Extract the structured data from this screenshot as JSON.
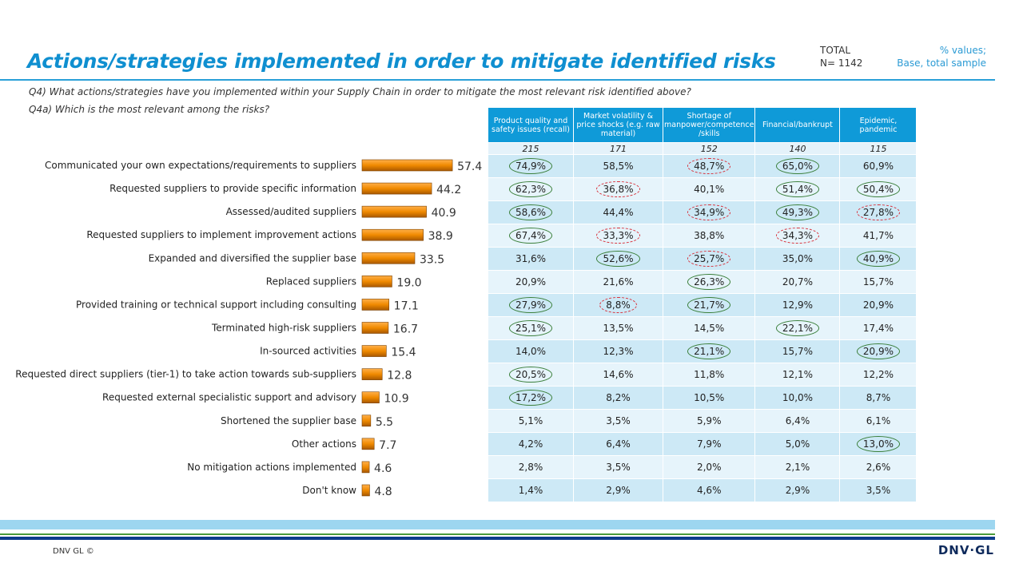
{
  "title": "Actions/strategies implemented in order to mitigate identified risks",
  "total_label": "TOTAL",
  "total_n": "N= 1142",
  "base_line1": "% values;",
  "base_line2": "Base,  total sample",
  "q4": "Q4) What actions/strategies have you implemented within your Supply Chain in order to mitigate the most relevant risk identified above?",
  "q4a": "Q4a) Which is the most relevant among the risks?",
  "chart_data": {
    "type": "bar",
    "orientation": "horizontal",
    "categories": [
      "Communicated your own expectations/requirements to suppliers",
      "Requested suppliers to provide specific information",
      "Assessed/audited suppliers",
      "Requested suppliers to implement improvement actions",
      "Expanded and diversified the supplier base",
      "Replaced suppliers",
      "Provided training or technical support including consulting",
      "Terminated high-risk suppliers",
      "In-sourced activities",
      "Requested direct suppliers (tier-1) to take action towards sub-suppliers",
      "Requested external specialistic support and advisory",
      "Shortened the supplier base",
      "Other actions",
      "No mitigation actions implemented",
      "Don't know"
    ],
    "values": [
      57.4,
      44.2,
      40.9,
      38.9,
      33.5,
      19.0,
      17.1,
      16.7,
      15.4,
      12.8,
      10.9,
      5.5,
      7.7,
      4.6,
      4.8
    ],
    "value_labels": [
      "57.4",
      "44.2",
      "40.9",
      "38.9",
      "33.5",
      "19.0",
      "17.1",
      "16.7",
      "15.4",
      "12.8",
      "10.9",
      "5.5",
      "7.7",
      "4.6",
      "4.8"
    ],
    "bar_color": "#f08a00",
    "grid": false
  },
  "table": {
    "headers": [
      "Product quality and safety issues (recall)",
      "Market volatility & price shocks (e.g. raw material)",
      "Shortage of manpower/competence /skills",
      "Financial/bankrupt",
      "Epidemic, pandemic"
    ],
    "bases": [
      "215",
      "171",
      "152",
      "140",
      "115"
    ],
    "rows": [
      [
        "74,9%",
        "58,5%",
        "48,7%",
        "65,0%",
        "60,9%"
      ],
      [
        "62,3%",
        "36,8%",
        "40,1%",
        "51,4%",
        "50,4%"
      ],
      [
        "58,6%",
        "44,4%",
        "34,9%",
        "49,3%",
        "27,8%"
      ],
      [
        "67,4%",
        "33,3%",
        "38,8%",
        "34,3%",
        "41,7%"
      ],
      [
        "31,6%",
        "52,6%",
        "25,7%",
        "35,0%",
        "40,9%"
      ],
      [
        "20,9%",
        "21,6%",
        "26,3%",
        "20,7%",
        "15,7%"
      ],
      [
        "27,9%",
        "8,8%",
        "21,7%",
        "12,9%",
        "20,9%"
      ],
      [
        "25,1%",
        "13,5%",
        "14,5%",
        "22,1%",
        "17,4%"
      ],
      [
        "14,0%",
        "12,3%",
        "21,1%",
        "15,7%",
        "20,9%"
      ],
      [
        "20,5%",
        "14,6%",
        "11,8%",
        "12,1%",
        "12,2%"
      ],
      [
        "17,2%",
        "8,2%",
        "10,5%",
        "10,0%",
        "8,7%"
      ],
      [
        "5,1%",
        "3,5%",
        "5,9%",
        "6,4%",
        "6,1%"
      ],
      [
        "4,2%",
        "6,4%",
        "7,9%",
        "5,0%",
        "13,0%"
      ],
      [
        "2,8%",
        "3,5%",
        "2,0%",
        "2,1%",
        "2,6%"
      ],
      [
        "1,4%",
        "2,9%",
        "4,6%",
        "2,9%",
        "3,5%"
      ]
    ],
    "marks": [
      [
        "high",
        "",
        "low",
        "high",
        ""
      ],
      [
        "high",
        "low",
        "",
        "high",
        "high"
      ],
      [
        "high",
        "",
        "low",
        "high",
        "low"
      ],
      [
        "high",
        "low",
        "",
        "low",
        ""
      ],
      [
        "",
        "high",
        "low",
        "",
        "high"
      ],
      [
        "",
        "",
        "high",
        "",
        ""
      ],
      [
        "high",
        "low",
        "high",
        "",
        ""
      ],
      [
        "high",
        "",
        "",
        "high",
        ""
      ],
      [
        "",
        "",
        "high",
        "",
        "high"
      ],
      [
        "high",
        "",
        "",
        "",
        ""
      ],
      [
        "high",
        "",
        "",
        "",
        ""
      ],
      [
        "",
        "",
        "",
        "",
        ""
      ],
      [
        "",
        "",
        "",
        "",
        "high"
      ],
      [
        "",
        "",
        "",
        "",
        ""
      ],
      [
        "",
        "",
        "",
        "",
        ""
      ]
    ]
  },
  "footer": {
    "copyright": "DNV GL ©",
    "logo": "DNV·GL"
  }
}
